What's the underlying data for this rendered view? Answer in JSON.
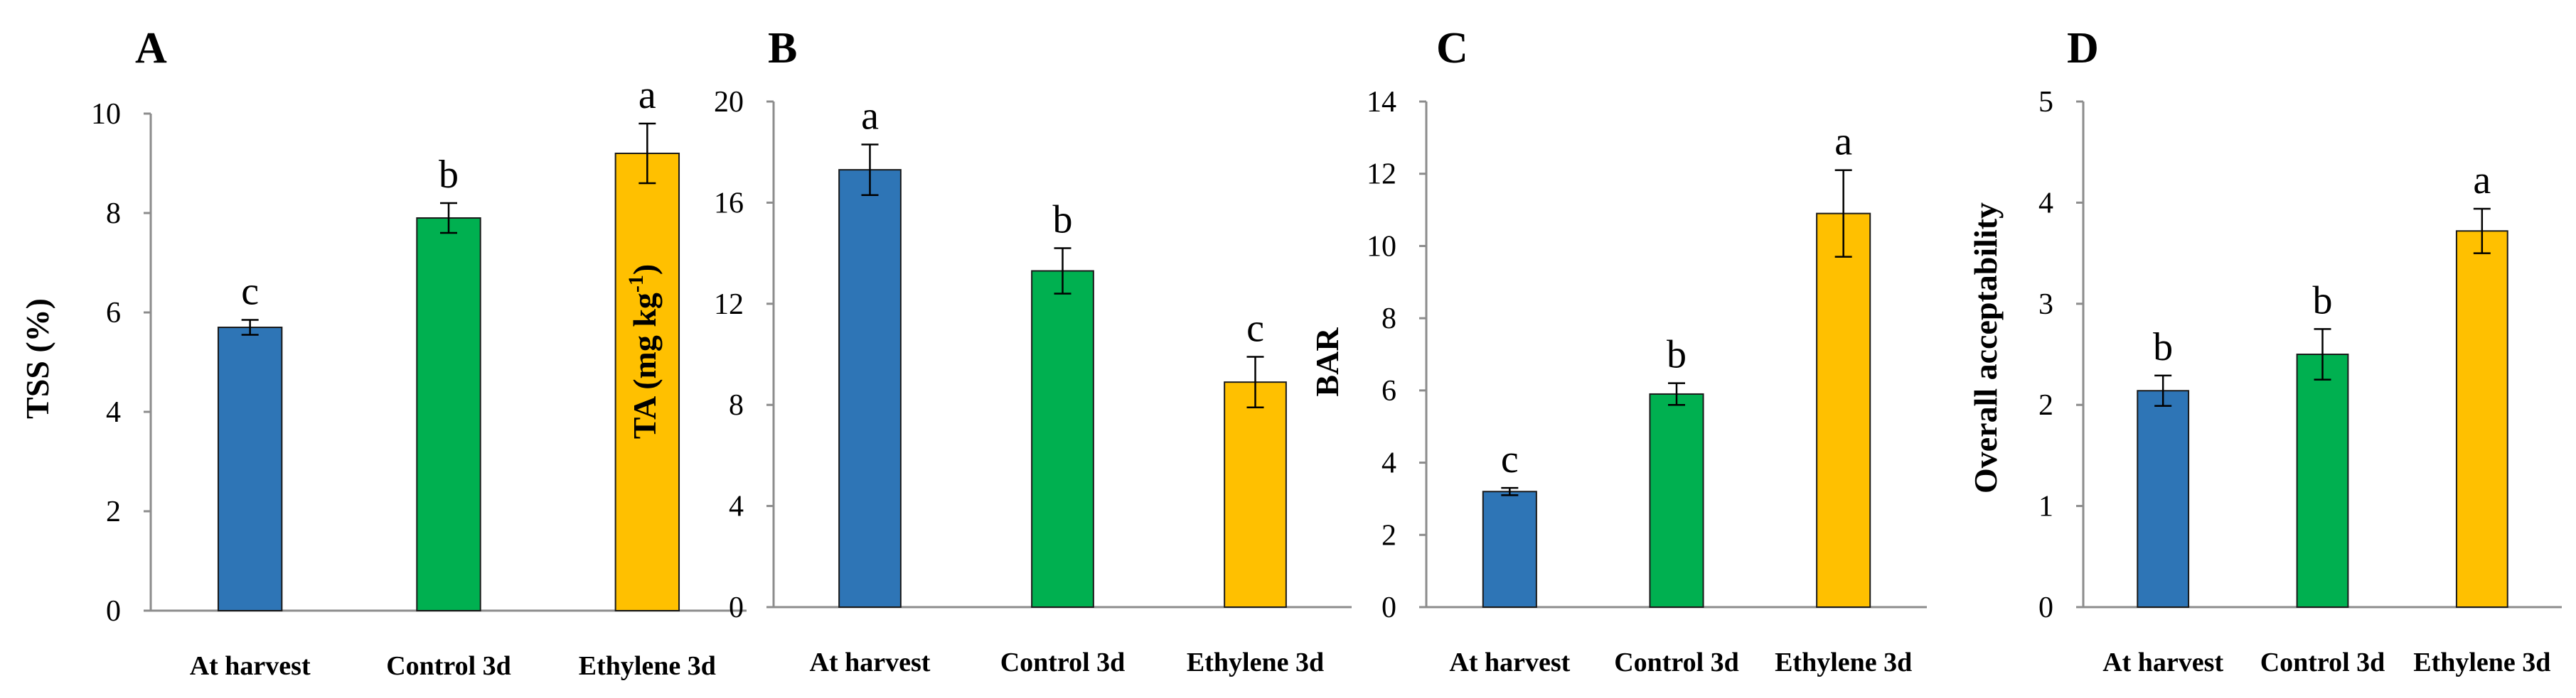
{
  "colors": {
    "at_harvest": "#2E75B6",
    "control": "#00B050",
    "ethylene": "#FFC000",
    "bar_edge": "#1a1a1a",
    "axis": "#8c8c8c"
  },
  "chart_data": [
    {
      "type": "bar",
      "panel_label": "A",
      "ylabel": "TSS (%)",
      "categories": [
        "At harvest",
        "Control 3d",
        "Ethylene 3d"
      ],
      "values": [
        5.7,
        7.9,
        9.2
      ],
      "errors": [
        0.15,
        0.3,
        0.6
      ],
      "letters": [
        "c",
        "b",
        "a"
      ],
      "ylim": [
        0,
        10
      ],
      "yticks": [
        0,
        2,
        4,
        6,
        8,
        10
      ],
      "ytick_labels": [
        "0",
        "2",
        "4",
        "6",
        "8",
        "10"
      ]
    },
    {
      "type": "bar",
      "panel_label": "B",
      "ylabel": "TA (mg kg",
      "ylabel_sup": "-1",
      "ylabel_end": ")",
      "categories": [
        "At harvest",
        "Control 3d",
        "Ethylene 3d"
      ],
      "values": [
        17.3,
        13.3,
        8.9
      ],
      "errors": [
        1.0,
        0.9,
        1.0
      ],
      "letters": [
        "a",
        "b",
        "c"
      ],
      "ylim": [
        0,
        20
      ],
      "yticks": [
        0,
        4,
        8,
        12,
        16,
        20
      ],
      "ytick_labels": [
        "0",
        "4",
        "8",
        "12",
        "16",
        "20"
      ]
    },
    {
      "type": "bar",
      "panel_label": "C",
      "ylabel": "BAR",
      "categories": [
        "At harvest",
        "Control 3d",
        "Ethylene 3d"
      ],
      "values": [
        3.2,
        5.9,
        10.9
      ],
      "errors": [
        0.1,
        0.3,
        1.2
      ],
      "letters": [
        "c",
        "b",
        "a"
      ],
      "ylim": [
        0,
        14
      ],
      "yticks": [
        0,
        2,
        4,
        6,
        8,
        10,
        12,
        14
      ],
      "ytick_labels": [
        "0",
        "2",
        "4",
        "6",
        "8",
        "10",
        "12",
        "14"
      ]
    },
    {
      "type": "bar",
      "panel_label": "D",
      "ylabel": "Overall acceptability",
      "categories": [
        "At harvest",
        "Control 3d",
        "Ethylene 3d"
      ],
      "values": [
        2.14,
        2.5,
        3.72
      ],
      "errors": [
        0.15,
        0.25,
        0.22
      ],
      "letters": [
        "b",
        "b",
        "a"
      ],
      "ylim": [
        0,
        5
      ],
      "yticks": [
        0,
        1,
        2,
        3,
        4,
        5
      ],
      "ytick_labels": [
        "0",
        "1",
        "2",
        "3",
        "4",
        "5"
      ]
    }
  ]
}
